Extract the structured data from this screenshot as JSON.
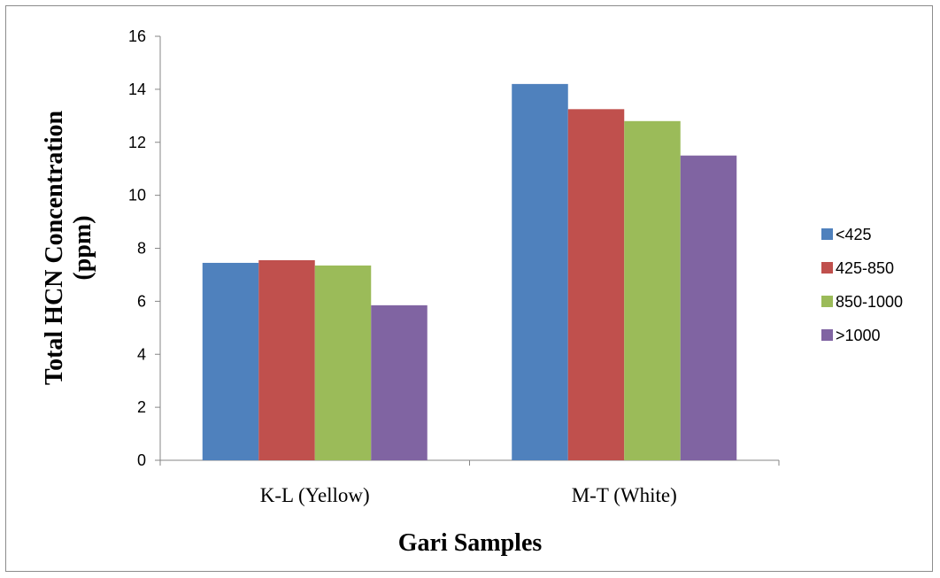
{
  "chart_data": {
    "type": "bar",
    "title": "",
    "xlabel": "Gari Samples",
    "ylabel_lines": [
      "Total HCN Concentration",
      "(ppm)"
    ],
    "categories": [
      "K-L (Yellow)",
      "M-T (White)"
    ],
    "series": [
      {
        "name": "<425",
        "values": [
          7.45,
          14.2
        ],
        "color": "#4f81bd"
      },
      {
        "name": "425-850",
        "values": [
          7.55,
          13.25
        ],
        "color": "#c0504d"
      },
      {
        "name": "850-1000",
        "values": [
          7.35,
          12.8
        ],
        "color": "#9bbb59"
      },
      {
        "name": ">1000",
        "values": [
          5.85,
          11.5
        ],
        "color": "#8064a2"
      }
    ],
    "ylim": [
      0,
      16
    ],
    "yticks": [
      0,
      2,
      4,
      6,
      8,
      10,
      12,
      14,
      16
    ],
    "grid": false,
    "legend_position": "right",
    "axis_color": "#868686"
  }
}
